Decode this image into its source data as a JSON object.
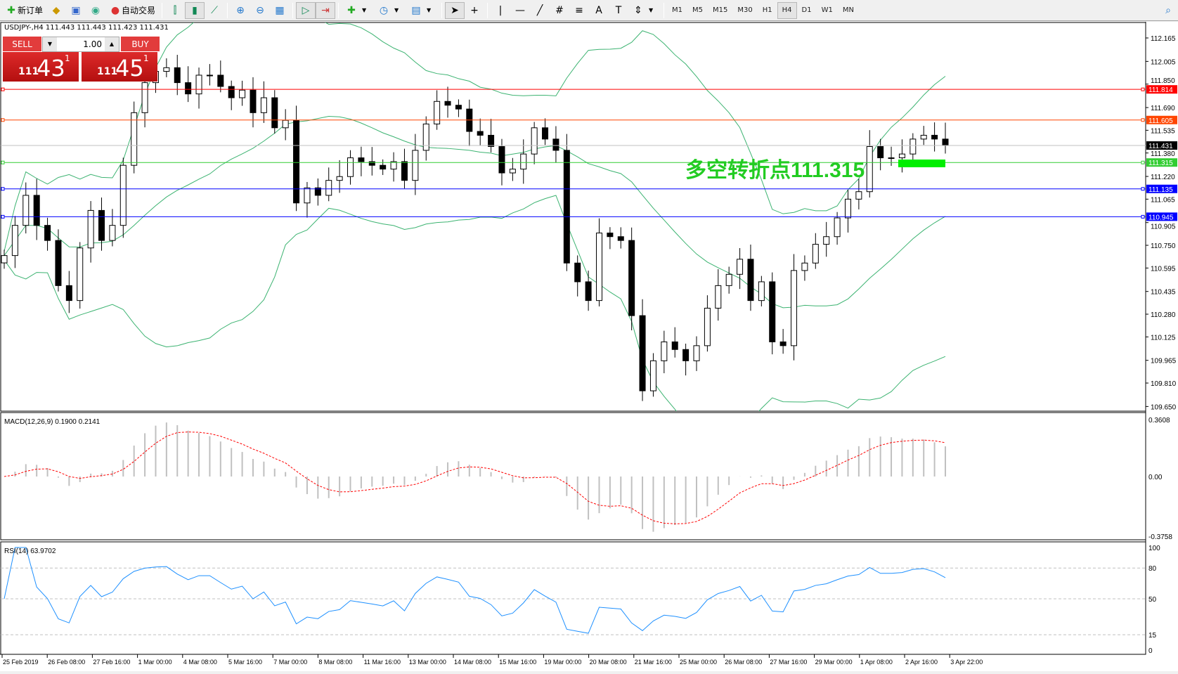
{
  "toolbar": {
    "new_order": "新订单",
    "auto_trading": "自动交易",
    "timeframes": [
      "M1",
      "M5",
      "M15",
      "M30",
      "H1",
      "H4",
      "D1",
      "W1",
      "MN"
    ],
    "active_timeframe": "H4"
  },
  "symbol_info": "USDJPY-,H4  111.443 111.443 111.423 111.431",
  "trade_panel": {
    "sell_label": "SELL",
    "buy_label": "BUY",
    "lot": "1.00",
    "sell_small": "111",
    "sell_big": "43",
    "sell_sup": "1",
    "buy_small": "111",
    "buy_big": "45",
    "buy_sup": "1"
  },
  "annotation": {
    "text": "多空转折点111.315",
    "color": "#22cc22"
  },
  "macd_label": "MACD(12,26,9) 0.1900 0.2141",
  "rsi_label": "RSI(14) 63.9702",
  "chart_data": [
    {
      "type": "candlestick",
      "symbol": "USDJPY-",
      "timeframe": "H4",
      "closes": [
        110.68,
        110.886,
        111.091,
        110.886,
        110.783,
        110.475,
        110.373,
        110.732,
        110.988,
        110.783,
        110.886,
        111.296,
        111.655,
        111.86,
        111.937,
        111.962,
        111.86,
        111.783,
        111.911,
        111.911,
        111.834,
        111.757,
        111.809,
        111.655,
        111.757,
        111.552,
        111.603,
        111.039,
        111.142,
        111.091,
        111.193,
        111.219,
        111.347,
        111.321,
        111.296,
        111.27,
        111.321,
        111.193,
        111.398,
        111.578,
        111.732,
        111.706,
        111.68,
        111.527,
        111.501,
        111.424,
        111.244,
        111.27,
        111.373,
        111.552,
        111.475,
        111.398,
        110.629,
        110.501,
        110.373,
        110.834,
        110.809,
        110.783,
        110.27,
        109.757,
        109.962,
        110.091,
        110.039,
        109.962,
        110.065,
        110.321,
        110.475,
        110.552,
        110.655,
        110.373,
        110.501,
        110.091,
        110.065,
        110.578,
        110.629,
        110.757,
        110.809,
        110.937,
        111.065,
        111.116,
        111.424,
        111.347,
        111.347,
        111.373,
        111.475,
        111.501,
        111.475,
        111.431
      ],
      "indicator": "Bollinger Bands",
      "ylim": [
        109.65,
        112.165
      ],
      "y_ticks": [
        "112.165",
        "112.005",
        "111.850",
        "111.690",
        "111.535",
        "111.380",
        "111.220",
        "111.065",
        "110.905",
        "110.750",
        "110.595",
        "110.435",
        "110.280",
        "110.125",
        "109.965",
        "109.810",
        "109.650"
      ],
      "levels": [
        {
          "value": "111.814",
          "color": "#ff0000"
        },
        {
          "value": "111.605",
          "color": "#ff4500"
        },
        {
          "value": "111.431",
          "color": "#000000",
          "line": "#c0c0c0"
        },
        {
          "value": "111.315",
          "color": "#32cd32"
        },
        {
          "value": "111.135",
          "color": "#0000ff"
        },
        {
          "value": "110.945",
          "color": "#0000ff"
        }
      ],
      "x_ticks": [
        "25 Feb 2019",
        "26 Feb 08:00",
        "27 Feb 16:00",
        "1 Mar 00:00",
        "4 Mar 08:00",
        "5 Mar 16:00",
        "7 Mar 00:00",
        "8 Mar 08:00",
        "11 Mar 16:00",
        "13 Mar 00:00",
        "14 Mar 08:00",
        "15 Mar 16:00",
        "19 Mar 00:00",
        "20 Mar 08:00",
        "21 Mar 16:00",
        "25 Mar 00:00",
        "26 Mar 08:00",
        "27 Mar 16:00",
        "29 Mar 00:00",
        "1 Apr 08:00",
        "2 Apr 16:00",
        "3 Apr 22:00"
      ]
    },
    {
      "type": "bar",
      "indicator": "MACD(12,26,9)",
      "ylim": [
        -0.3758,
        0.3608
      ],
      "y_ticks": [
        "0.3608",
        "0.00",
        "-0.3758"
      ],
      "signal_color": "#ff0000",
      "hist_color": "#c0c0c0"
    },
    {
      "type": "line",
      "indicator": "RSI(14)",
      "ylim": [
        0,
        100
      ],
      "y_ticks": [
        "100",
        "80",
        "50",
        "15",
        "0"
      ],
      "line_color": "#1e90ff"
    }
  ]
}
